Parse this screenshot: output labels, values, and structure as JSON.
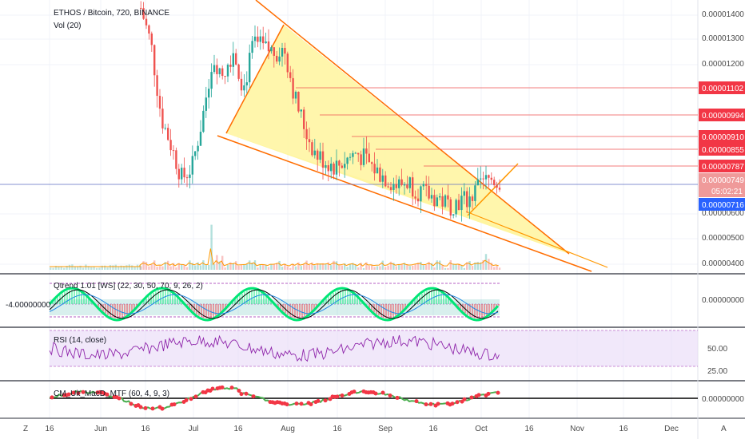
{
  "header": {
    "symbol_line": "ETHOS / Bitcoin, 720, BINANCE",
    "vol_label": "Vol (20)"
  },
  "indicators": {
    "qtrend_label": "Qtrend 1.01 [WS] (22, 30, 50, 70, 9, 26, 2)",
    "qtrend_left_value": "-4.00000000",
    "qtrend_right_value": "0.00000000",
    "rsi_label": "RSI (14, close)",
    "macd_label": "CM_Ult_MacD_MTF (60, 4, 9, 3)",
    "macd_right_value": "0.00000000"
  },
  "colors": {
    "up": "#26a69a",
    "down": "#ef5350",
    "wedge_fill": "#fff59d",
    "trendline": "#ff9800",
    "level_line": "#f44336",
    "rsi_band": "#e9dcf7",
    "rsi_line": "#8e24aa",
    "current_price_tag": "#f44336",
    "blue_line": "#2962ff"
  },
  "chart_data": {
    "type": "candlestick",
    "title": "ETHOS / Bitcoin, 720, BINANCE",
    "y_unit": "BTC",
    "y_ticks": [
      "0.00001400",
      "0.00001300",
      "0.00001200",
      "0.00000600",
      "0.00000500",
      "0.00000400"
    ],
    "y_range": [
      3.3e-06,
      1.44e-05
    ],
    "x_ticks": [
      "16",
      "Jun",
      "16",
      "Jul",
      "16",
      "Aug",
      "16",
      "Sep",
      "16",
      "Oct",
      "16",
      "Nov",
      "16",
      "Dec"
    ],
    "price_path": [
      [
        "May 30",
        1.45e-05
      ],
      [
        "Jun 2",
        1.3e-05
      ],
      [
        "Jun 5",
        1e-05
      ],
      [
        "Jun 8",
        8.8e-06
      ],
      [
        "Jun 11",
        7.5e-06
      ],
      [
        "Jun 14",
        8e-06
      ],
      [
        "Jun 17",
        1e-05
      ],
      [
        "Jun 20",
        1.25e-05
      ],
      [
        "Jun 23",
        1.18e-05
      ],
      [
        "Jun 26",
        1.28e-05
      ],
      [
        "Jun 29",
        1.12e-05
      ],
      [
        "Jul 2",
        1.31e-05
      ],
      [
        "Jul 5",
        1.28e-05
      ],
      [
        "Jul 8",
        1.27e-05
      ],
      [
        "Jul 11",
        1.28e-05
      ],
      [
        "Jul 14",
        1.08e-05
      ],
      [
        "Jul 17",
        9.5e-06
      ],
      [
        "Jul 20",
        8.5e-06
      ],
      [
        "Jul 23",
        8.2e-06
      ],
      [
        "Jul 26",
        8e-06
      ],
      [
        "Jul 29",
        8.3e-06
      ],
      [
        "Aug 1",
        8.6e-06
      ],
      [
        "Aug 4",
        8.2e-06
      ],
      [
        "Aug 7",
        7.8e-06
      ],
      [
        "Aug 10",
        7.5e-06
      ],
      [
        "Aug 13",
        7.2e-06
      ],
      [
        "Aug 16",
        7.4e-06
      ],
      [
        "Aug 19",
        7e-06
      ],
      [
        "Aug 22",
        6.8e-06
      ],
      [
        "Aug 25",
        6.7e-06
      ],
      [
        "Aug 28",
        6.4e-06
      ],
      [
        "Aug 31",
        6.6e-06
      ],
      [
        "Sep 3",
        6.7e-06
      ],
      [
        "Sep 6",
        7.2e-06
      ],
      [
        "Sep 9",
        7.5e-06
      ],
      [
        "Sep 12",
        7.4e-06
      ]
    ],
    "price_labels": [
      {
        "value": "0.00001102",
        "color": "#f44336"
      },
      {
        "value": "0.00000994",
        "color": "#f44336"
      },
      {
        "value": "0.00000910",
        "color": "#f44336"
      },
      {
        "value": "0.00000855",
        "color": "#f44336"
      },
      {
        "value": "0.00000787",
        "color": "#f44336"
      },
      {
        "value": "0.00000749",
        "color": "#ef9a9a",
        "note": "05:02:21"
      },
      {
        "value": "0.00000716",
        "color": "#2962ff"
      }
    ],
    "rsi": {
      "ticks": [
        "50.00",
        "25.00"
      ],
      "band": [
        30,
        70
      ]
    },
    "bottom_right": "A",
    "bottom_left": "Z"
  }
}
